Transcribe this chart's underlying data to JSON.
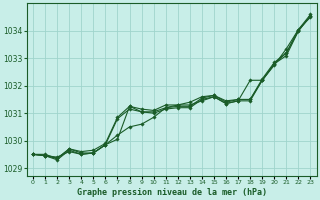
{
  "title": "Graphe pression niveau de la mer (hPa)",
  "background_color": "#c8eee8",
  "grid_color": "#a0d4cc",
  "line_color": "#1a5c28",
  "marker_color": "#1a5c28",
  "xlim": [
    -0.5,
    23.5
  ],
  "ylim": [
    1028.7,
    1035.0
  ],
  "yticks": [
    1029,
    1030,
    1031,
    1032,
    1033,
    1034
  ],
  "xtick_labels": [
    "0",
    "1",
    "2",
    "3",
    "4",
    "5",
    "6",
    "7",
    "8",
    "9",
    "10",
    "11",
    "12",
    "13",
    "14",
    "15",
    "16",
    "17",
    "18",
    "19",
    "20",
    "21",
    "22",
    "23"
  ],
  "series": [
    [
      1029.5,
      1029.5,
      1029.35,
      1029.7,
      1029.55,
      1029.55,
      1029.85,
      1030.8,
      1031.15,
      1031.05,
      1031.0,
      1031.15,
      1031.2,
      1031.2,
      1031.5,
      1031.6,
      1031.35,
      1031.45,
      1031.45,
      1032.2,
      1032.8,
      1033.1,
      1034.0,
      1034.55
    ],
    [
      1029.5,
      1029.45,
      1029.35,
      1029.7,
      1029.6,
      1029.65,
      1029.9,
      1030.85,
      1031.25,
      1031.05,
      1031.05,
      1031.2,
      1031.25,
      1031.25,
      1031.55,
      1031.65,
      1031.45,
      1031.5,
      1031.5,
      1032.2,
      1032.8,
      1033.2,
      1034.05,
      1034.5
    ],
    [
      1029.5,
      1029.45,
      1029.4,
      1029.6,
      1029.5,
      1029.55,
      1029.85,
      1030.2,
      1030.5,
      1030.6,
      1030.85,
      1031.2,
      1031.3,
      1031.3,
      1031.45,
      1031.6,
      1031.35,
      1031.45,
      1032.2,
      1032.2,
      1032.75,
      1033.35,
      1034.05,
      1034.6
    ],
    [
      1029.5,
      1029.45,
      1029.3,
      1029.65,
      1029.5,
      1029.55,
      1029.85,
      1030.05,
      1031.25,
      1031.15,
      1031.1,
      1031.3,
      1031.3,
      1031.4,
      1031.6,
      1031.65,
      1031.4,
      1031.5,
      1031.5,
      1032.25,
      1032.85,
      1033.2,
      1034.0,
      1034.55
    ]
  ]
}
